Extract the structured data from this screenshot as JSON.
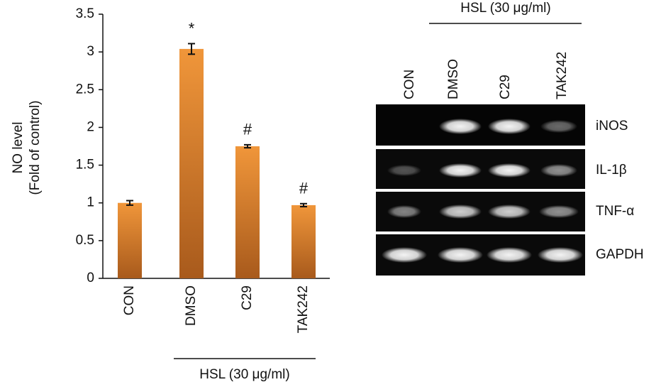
{
  "chart_data": {
    "type": "bar",
    "y_label": [
      "NO level",
      "(Fold of control)"
    ],
    "categories": [
      "CON",
      "DMSO",
      "C29",
      "TAK242"
    ],
    "values": [
      1.0,
      3.04,
      1.75,
      0.97
    ],
    "errors": [
      0.03,
      0.07,
      0.02,
      0.02
    ],
    "color": "#f0963a",
    "ylim": [
      0,
      3.5
    ],
    "yticks": [
      0,
      0.5,
      1,
      1.5,
      2,
      2.5,
      3,
      3.5
    ],
    "grid": false,
    "annotations": [
      {
        "text": "*",
        "category": "DMSO"
      },
      {
        "text": "#",
        "category": "C29"
      },
      {
        "text": "#",
        "category": "TAK242"
      }
    ],
    "group_label": "HSL (30 μg/ml)"
  },
  "gel": {
    "group_label": "HSL (30 μg/ml)",
    "lanes": [
      "CON",
      "DMSO",
      "C29",
      "TAK242"
    ],
    "bands": [
      "iNOS",
      "IL-1β",
      "TNF-α",
      "GAPDH"
    ]
  }
}
